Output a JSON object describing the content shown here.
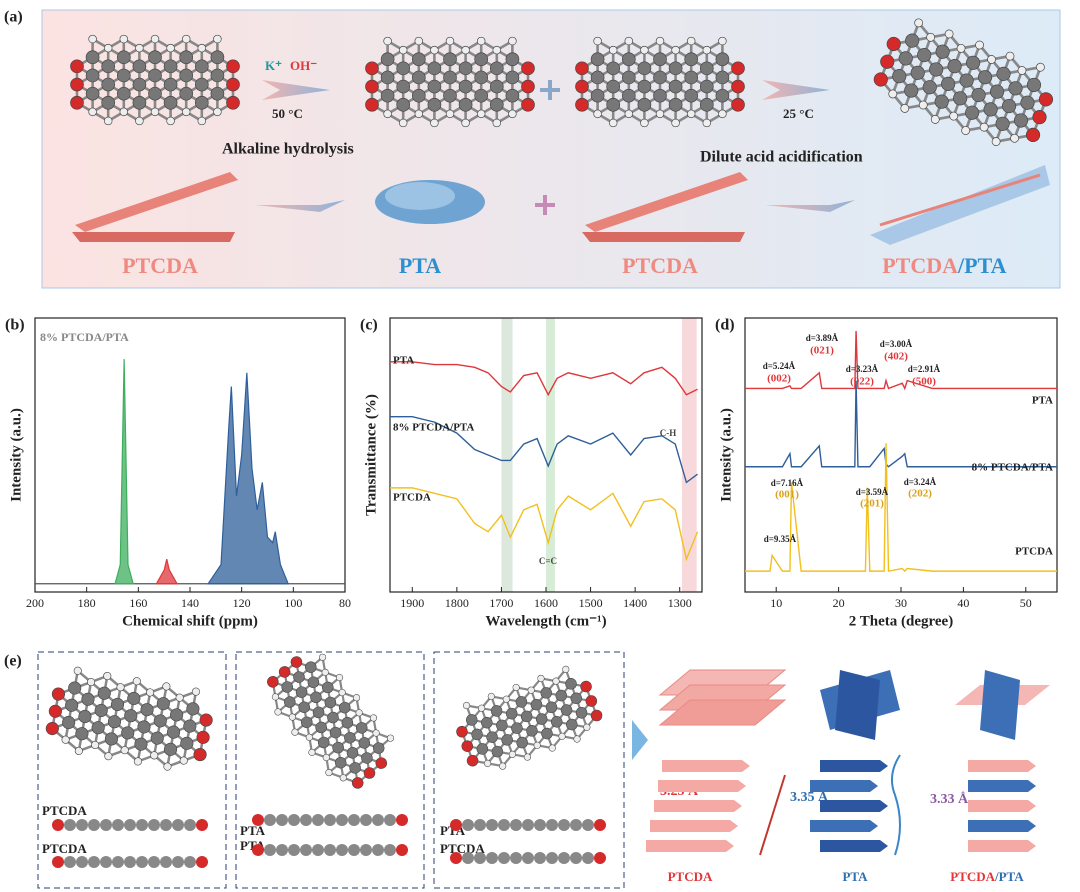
{
  "panel_a": {
    "label": "(a)",
    "reagent_1": "K⁺",
    "reagent_2": "OH⁻",
    "temp_1": "50 °C",
    "step_1": "Alkaline hydrolysis",
    "temp_2": "25 °C",
    "step_2": "Dilute acid acidification",
    "names": [
      "PTCDA",
      "PTA",
      "PTCDA",
      "PTCDA",
      "/PTA"
    ]
  },
  "chart_data": [
    {
      "type": "area",
      "panel": "(b)",
      "xlabel": "Chemical shift (ppm)",
      "ylabel": "Intensity (a.u.)",
      "inset_label": "8% PTCDA/PTA",
      "xlim": [
        200,
        80
      ],
      "xticks": [
        200,
        180,
        160,
        140,
        120,
        100,
        80
      ],
      "ylim": [
        0,
        100
      ],
      "series": [
        {
          "color": "#555555",
          "x": [
            200,
            80
          ],
          "values": [
            3,
            3
          ]
        },
        {
          "color": "#3cae5c",
          "x": [
            169,
            167,
            166,
            165.5,
            165,
            164,
            162
          ],
          "values": [
            3,
            10,
            60,
            85,
            60,
            10,
            3
          ]
        },
        {
          "color": "#e0373a",
          "x": [
            153,
            150,
            149,
            148,
            145
          ],
          "values": [
            3,
            8,
            12,
            8,
            3
          ]
        },
        {
          "color": "#2f5f9a",
          "x": [
            133,
            128,
            125,
            124,
            122,
            120,
            118,
            116,
            114,
            112,
            110,
            108,
            107,
            105,
            102
          ],
          "values": [
            3,
            10,
            60,
            75,
            35,
            50,
            80,
            45,
            30,
            40,
            20,
            18,
            22,
            10,
            3
          ]
        }
      ]
    },
    {
      "type": "line",
      "panel": "(c)",
      "xlabel": "Wavelength (cm⁻¹)",
      "ylabel": "Transmittance (%)",
      "annotations": [
        "C-H",
        "C=C"
      ],
      "xlim": [
        1950,
        1250
      ],
      "xticks": [
        1900,
        1800,
        1700,
        1600,
        1500,
        1400,
        1300
      ],
      "ylim": [
        0,
        100
      ],
      "bands": [
        [
          1700,
          1675
        ],
        [
          1600,
          1580
        ],
        [
          1295,
          1262
        ]
      ],
      "x": [
        1950,
        1900,
        1850,
        1800,
        1760,
        1730,
        1700,
        1680,
        1650,
        1620,
        1595,
        1575,
        1550,
        1500,
        1450,
        1410,
        1380,
        1340,
        1310,
        1285,
        1260
      ],
      "series": [
        {
          "name": "PTA",
          "color": "#e0373a",
          "values": [
            84,
            84,
            83,
            83,
            82,
            80,
            75,
            73,
            79,
            80,
            72,
            78,
            80,
            78,
            80,
            76,
            80,
            82,
            78,
            72,
            74
          ]
        },
        {
          "name": "8% PTCDA/PTA",
          "color": "#2f5f9a",
          "values": [
            64,
            64,
            62,
            58,
            52,
            50,
            48,
            48,
            54,
            56,
            46,
            54,
            57,
            54,
            58,
            50,
            56,
            57,
            54,
            40,
            43
          ]
        },
        {
          "name": "PTCDA",
          "color": "#f2c01e",
          "values": [
            38,
            38,
            36,
            34,
            25,
            22,
            28,
            20,
            30,
            32,
            18,
            30,
            35,
            30,
            36,
            24,
            33,
            34,
            30,
            12,
            22
          ]
        }
      ]
    },
    {
      "type": "line",
      "panel": "(d)",
      "xlabel": "2 Theta (degree)",
      "ylabel": "Intensity (a.u.)",
      "annotations": [
        "d=3.89Å",
        "(021)",
        "d=5.24Å",
        "(002)",
        "d=3.23Å",
        "(022)",
        "d=3.00Å",
        "(402)",
        "d=2.91Å",
        "(500)",
        "d=7.16Å",
        "(001)",
        "d=3.59Å",
        "(201)",
        "d=3.24Å",
        "(202)",
        "d=9.35Å"
      ],
      "xlim": [
        5,
        55
      ],
      "xticks": [
        10,
        20,
        30,
        40,
        50
      ],
      "ylim": [
        0,
        105
      ],
      "x": [
        5,
        8,
        9.0,
        9.35,
        11,
        12.2,
        12.45,
        14,
        16.9,
        17.3,
        19,
        22.6,
        22.8,
        23.1,
        24.3,
        24.6,
        25,
        27.3,
        27.6,
        28,
        30.2,
        30.6,
        31,
        35,
        40,
        45,
        50,
        55
      ],
      "series": [
        {
          "name": "PTA",
          "color": "#e0373a",
          "values": [
            78,
            78,
            78,
            78,
            78,
            79,
            78,
            78,
            84,
            78,
            78,
            78,
            100,
            78,
            78,
            78,
            78,
            78,
            81,
            78,
            80,
            78,
            81,
            78,
            78,
            78,
            78,
            78
          ]
        },
        {
          "name": "8% PTCDA/PTA",
          "color": "#2f5f9a",
          "values": [
            48,
            48,
            48,
            48,
            48,
            53,
            48,
            48,
            56,
            48,
            48,
            48,
            81,
            48,
            48,
            48,
            48,
            55,
            49,
            48,
            52,
            53,
            48,
            48,
            48,
            48,
            48,
            48
          ]
        },
        {
          "name": "PTCDA",
          "color": "#f2c01e",
          "values": [
            8,
            8,
            8,
            14,
            8,
            8,
            42,
            8,
            8,
            8,
            8,
            8,
            8,
            8,
            8,
            40,
            8,
            8,
            57,
            8,
            9,
            8,
            9,
            8,
            8,
            8,
            8,
            8
          ]
        }
      ]
    }
  ],
  "panel_e": {
    "label": "(e)",
    "boxes": [
      [
        "PTCDA",
        "PTCDA"
      ],
      [
        "PTA",
        "PTA"
      ],
      [
        "PTA",
        "PTCDA"
      ]
    ],
    "distances": [
      "3.25 Å",
      "3.35 Å",
      "3.33 Å"
    ],
    "names": [
      "PTCDA",
      "PTA",
      "PTCDA",
      "/PTA"
    ]
  }
}
